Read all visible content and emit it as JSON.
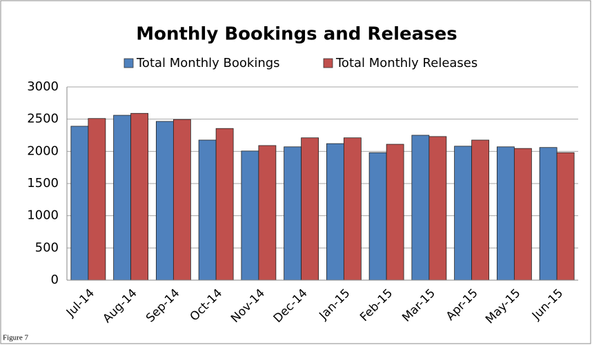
{
  "chart_data": {
    "type": "bar",
    "title": "Monthly Bookings and Releases",
    "categories": [
      "Jul-14",
      "Aug-14",
      "Sep-14",
      "Oct-14",
      "Nov-14",
      "Dec-14",
      "Jan-15",
      "Feb-15",
      "Mar-15",
      "Apr-15",
      "May-15",
      "Jun-15"
    ],
    "series": [
      {
        "name": "Total Monthly Bookings",
        "color": "#4f81bd",
        "values": [
          2390,
          2560,
          2465,
          2175,
          2005,
          2070,
          2120,
          1980,
          2250,
          2080,
          2070,
          2060
        ]
      },
      {
        "name": "Total Monthly Releases",
        "color": "#c0504d",
        "values": [
          2510,
          2590,
          2495,
          2355,
          2090,
          2210,
          2210,
          2110,
          2230,
          2175,
          2045,
          1980
        ]
      }
    ],
    "ylim": [
      0,
      3000
    ],
    "yticks": [
      0,
      500,
      1000,
      1500,
      2000,
      2500,
      3000
    ],
    "grid": true,
    "legend": "top"
  },
  "figure_label": "Figure 7"
}
